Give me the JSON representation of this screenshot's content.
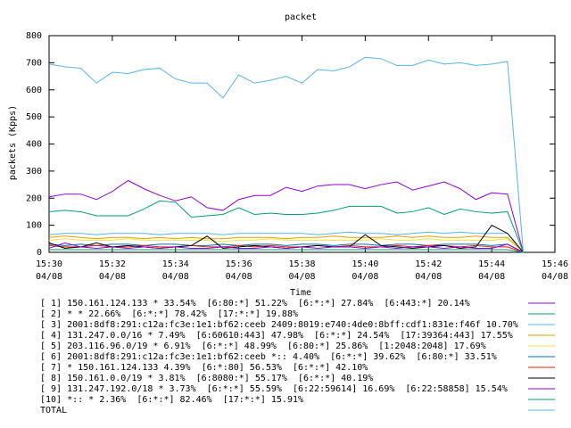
{
  "chart_data": {
    "type": "line",
    "title": "packet",
    "ylabel": "packets (Kpps)",
    "xlabel": "Time",
    "x": [
      930,
      930.5,
      931,
      931.5,
      932,
      932.5,
      933,
      933.5,
      934,
      934.5,
      935,
      935.5,
      936,
      936.5,
      937,
      937.5,
      938,
      938.5,
      939,
      939.5,
      940,
      940.5,
      941,
      941.5,
      942,
      942.5,
      943,
      943.5,
      944,
      944.5,
      945
    ],
    "xlim": [
      930,
      946
    ],
    "xticks": [
      {
        "value": 930,
        "label": "15:30",
        "sublabel": "04/08"
      },
      {
        "value": 932,
        "label": "15:32",
        "sublabel": "04/08"
      },
      {
        "value": 934,
        "label": "15:34",
        "sublabel": "04/08"
      },
      {
        "value": 936,
        "label": "15:36",
        "sublabel": "04/08"
      },
      {
        "value": 938,
        "label": "15:38",
        "sublabel": "04/08"
      },
      {
        "value": 940,
        "label": "15:40",
        "sublabel": "04/08"
      },
      {
        "value": 942,
        "label": "15:42",
        "sublabel": "04/08"
      },
      {
        "value": 944,
        "label": "15:44",
        "sublabel": "04/08"
      },
      {
        "value": 946,
        "label": "15:46",
        "sublabel": "04/08"
      }
    ],
    "ylim": [
      0,
      800
    ],
    "yticks": [
      0,
      100,
      200,
      300,
      400,
      500,
      600,
      700,
      800
    ],
    "grid": false,
    "series": [
      {
        "name": "[ 1] 150.161.124.133 * 33.54%  [6:80:*] 51.22%  [6:*:*] 27.84%  [6:443:*] 20.14%",
        "color": "#9400d3",
        "values": [
          205,
          215,
          215,
          195,
          225,
          265,
          235,
          210,
          190,
          205,
          165,
          155,
          195,
          210,
          210,
          240,
          225,
          245,
          250,
          250,
          235,
          250,
          260,
          230,
          245,
          260,
          235,
          195,
          220,
          215,
          0
        ]
      },
      {
        "name": "[ 2] * * 22.66%  [6:*:*] 78.42%  [17:*:*] 19.88%",
        "color": "#009e73",
        "values": [
          150,
          155,
          150,
          135,
          135,
          135,
          160,
          190,
          185,
          130,
          135,
          140,
          165,
          140,
          145,
          140,
          140,
          145,
          155,
          170,
          170,
          170,
          145,
          150,
          165,
          140,
          160,
          150,
          145,
          150,
          0
        ]
      },
      {
        "name": "[ 3] 2001:8df8:291:c12a:fc3e:1e1:bf62:ceeb 2409:8019:e740:4de0:8bff:cdf1:831e:f46f 10.70%",
        "color": "#56b4e9",
        "values": [
          65,
          70,
          70,
          65,
          70,
          70,
          70,
          65,
          70,
          70,
          70,
          65,
          70,
          70,
          70,
          70,
          70,
          65,
          70,
          75,
          70,
          70,
          65,
          70,
          75,
          70,
          75,
          70,
          70,
          70,
          0
        ]
      },
      {
        "name": "[ 4] 131.247.0.0/16 * 7.49%  [6:60610:443] 47.98%  [6:*:*] 24.54%  [17:39364:443] 17.55%",
        "color": "#e69f00",
        "values": [
          55,
          60,
          55,
          50,
          55,
          55,
          50,
          55,
          50,
          55,
          50,
          50,
          55,
          55,
          55,
          50,
          55,
          55,
          60,
          55,
          55,
          55,
          60,
          55,
          60,
          55,
          55,
          60,
          55,
          55,
          0
        ]
      },
      {
        "name": "[ 5] 203.116.96.0/19 * 6.91%  [6:*:*] 48.99%  [6:80:*] 25.86%  [1:2048:2048] 17.69%",
        "color": "#f0e442",
        "values": [
          45,
          50,
          45,
          45,
          45,
          50,
          45,
          45,
          45,
          45,
          45,
          40,
          45,
          45,
          50,
          45,
          45,
          45,
          45,
          45,
          45,
          50,
          45,
          45,
          50,
          45,
          45,
          45,
          45,
          50,
          0
        ]
      },
      {
        "name": "[ 6] 2001:8df8:291:c12a:fc3e:1e1:bf62:ceeb *:: 4.40%  [6:*:*] 39.62%  [6:80:*] 33.51%",
        "color": "#0072b2",
        "values": [
          30,
          25,
          30,
          25,
          30,
          30,
          25,
          30,
          30,
          25,
          25,
          30,
          25,
          30,
          30,
          25,
          30,
          30,
          25,
          30,
          30,
          25,
          30,
          30,
          25,
          30,
          30,
          30,
          25,
          30,
          0
        ]
      },
      {
        "name": "[ 7] * 150.161.124.133 4.39%  [6:*:80] 56.53%  [6:*:*] 42.10%",
        "color": "#e51e10",
        "values": [
          25,
          20,
          20,
          25,
          20,
          20,
          25,
          20,
          20,
          25,
          20,
          20,
          25,
          20,
          25,
          20,
          20,
          25,
          20,
          25,
          20,
          20,
          25,
          20,
          25,
          25,
          20,
          25,
          20,
          20,
          0
        ]
      },
      {
        "name": "[ 8] 150.161.0.0/19 * 3.81%  [6:8080:*] 55.17%  [6:*:*] 40.19%",
        "color": "#000000",
        "values": [
          35,
          15,
          20,
          35,
          20,
          25,
          20,
          15,
          20,
          25,
          60,
          15,
          20,
          25,
          20,
          15,
          20,
          25,
          20,
          20,
          65,
          25,
          20,
          15,
          20,
          25,
          15,
          20,
          100,
          70,
          0
        ]
      },
      {
        "name": "[ 9] 131.247.192.0/18 * 3.73%  [6:*:*] 55.59%  [6:22:59614] 16.69%  [6:22:58858] 15.54%",
        "color": "#9400d3",
        "values": [
          15,
          35,
          20,
          15,
          20,
          15,
          20,
          15,
          20,
          15,
          15,
          20,
          15,
          15,
          20,
          15,
          20,
          15,
          20,
          20,
          15,
          20,
          15,
          20,
          20,
          15,
          20,
          15,
          15,
          30,
          0
        ]
      },
      {
        "name": "[10] *:: * 2.36%  [6:*:*] 82.46%  [17:*:*] 15.91%",
        "color": "#009e73",
        "values": [
          10,
          10,
          10,
          10,
          10,
          10,
          10,
          10,
          10,
          10,
          10,
          10,
          10,
          10,
          10,
          10,
          10,
          10,
          10,
          10,
          10,
          10,
          10,
          10,
          10,
          10,
          10,
          10,
          10,
          10,
          0
        ]
      },
      {
        "name": "TOTAL",
        "color": "#56b4e9",
        "values": [
          695,
          685,
          680,
          625,
          665,
          660,
          675,
          680,
          640,
          625,
          625,
          570,
          655,
          625,
          635,
          650,
          625,
          675,
          670,
          685,
          720,
          715,
          690,
          690,
          710,
          695,
          700,
          690,
          695,
          705,
          0
        ]
      }
    ]
  }
}
